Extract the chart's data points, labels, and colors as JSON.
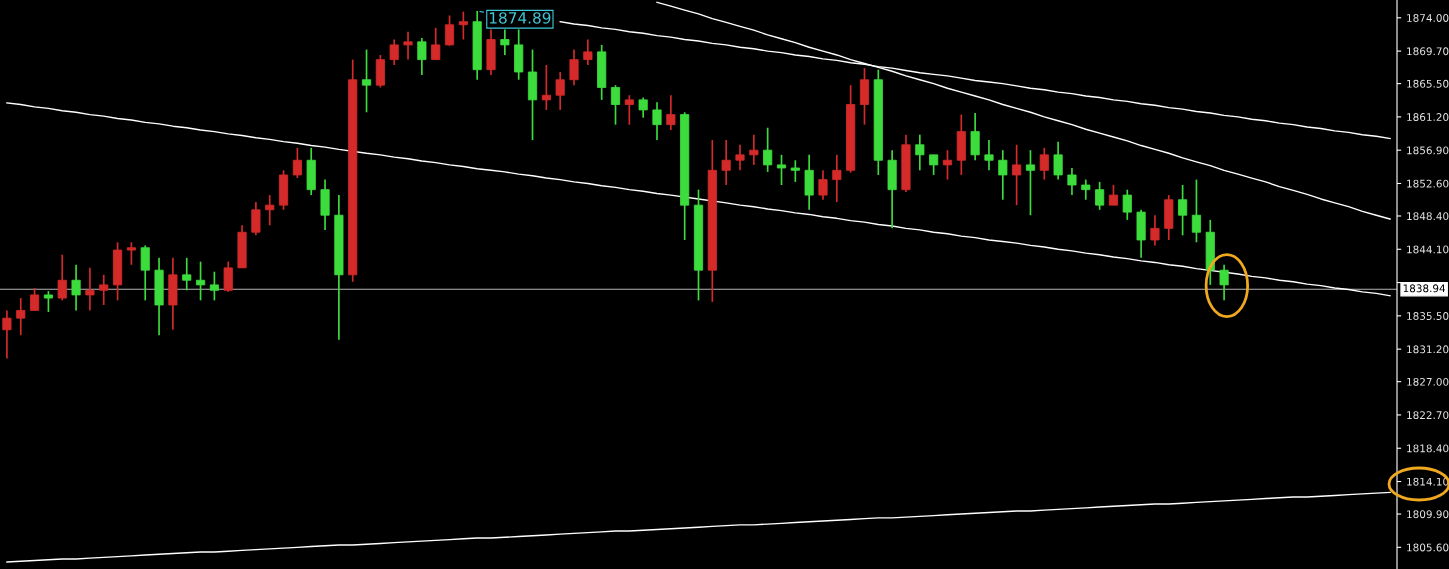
{
  "chart_data": {
    "type": "candlestick",
    "categories": [
      null,
      null,
      null,
      null,
      null,
      null,
      null,
      null,
      null,
      null,
      null,
      null,
      null,
      null,
      null,
      null,
      null,
      null,
      null,
      null,
      null,
      null,
      null,
      null,
      null,
      null,
      null,
      null,
      null,
      null,
      null,
      null,
      null,
      null,
      null,
      null,
      null,
      null,
      null,
      null,
      null,
      null,
      null,
      null,
      null,
      null,
      null,
      null,
      null,
      null,
      null,
      null,
      null,
      null,
      null,
      null,
      null,
      null,
      null,
      null,
      null,
      null,
      null,
      null,
      null,
      null,
      null,
      null,
      null,
      null,
      null,
      null,
      null,
      null,
      null,
      null,
      null,
      null,
      null,
      null,
      null,
      null,
      null,
      null,
      null,
      null,
      null,
      null,
      null,
      null,
      null,
      null,
      null,
      null,
      null,
      null,
      null,
      null,
      null,
      null,
      null
    ],
    "ohlc": [
      [
        1833.7,
        1836.2,
        1830.0,
        1835.2
      ],
      [
        1835.2,
        1837.8,
        1833.0,
        1836.2
      ],
      [
        1836.2,
        1839.1,
        1836.2,
        1838.2
      ],
      [
        1838.2,
        1838.7,
        1836.0,
        1837.8
      ],
      [
        1837.8,
        1843.4,
        1837.5,
        1840.1
      ],
      [
        1840.1,
        1842.1,
        1836.2,
        1838.2
      ],
      [
        1838.2,
        1841.7,
        1836.2,
        1838.8
      ],
      [
        1838.8,
        1840.8,
        1836.9,
        1839.5
      ],
      [
        1839.5,
        1845.0,
        1837.5,
        1844.0
      ],
      [
        1844.0,
        1845.0,
        1842.1,
        1844.3
      ],
      [
        1844.3,
        1844.6,
        1837.5,
        1841.4
      ],
      [
        1841.4,
        1843.0,
        1833.0,
        1836.9
      ],
      [
        1836.9,
        1843.0,
        1833.7,
        1840.8
      ],
      [
        1840.8,
        1843.0,
        1838.8,
        1840.1
      ],
      [
        1840.1,
        1842.5,
        1837.5,
        1839.5
      ],
      [
        1839.5,
        1841.2,
        1837.5,
        1838.8
      ],
      [
        1838.8,
        1842.5,
        1838.6,
        1841.7
      ],
      [
        1841.7,
        1847.2,
        1841.7,
        1846.3
      ],
      [
        1846.3,
        1850.2,
        1845.9,
        1849.2
      ],
      [
        1849.2,
        1851.1,
        1847.2,
        1849.8
      ],
      [
        1849.8,
        1854.3,
        1849.2,
        1853.7
      ],
      [
        1853.7,
        1857.2,
        1853.3,
        1855.6
      ],
      [
        1855.6,
        1857.2,
        1851.1,
        1851.8
      ],
      [
        1851.8,
        1853.1,
        1846.6,
        1848.5
      ],
      [
        1848.5,
        1851.1,
        1832.4,
        1840.8
      ],
      [
        1840.8,
        1868.6,
        1839.9,
        1866.0
      ],
      [
        1866.0,
        1869.9,
        1861.8,
        1865.3
      ],
      [
        1865.3,
        1869.2,
        1865.0,
        1868.6
      ],
      [
        1868.6,
        1871.2,
        1867.9,
        1870.5
      ],
      [
        1870.5,
        1872.2,
        1868.6,
        1870.9
      ],
      [
        1870.9,
        1871.4,
        1866.6,
        1868.6
      ],
      [
        1868.6,
        1872.7,
        1868.6,
        1870.5
      ],
      [
        1870.5,
        1874.3,
        1870.4,
        1873.1
      ],
      [
        1873.1,
        1874.8,
        1871.2,
        1873.5
      ],
      [
        1873.5,
        1874.89,
        1866.0,
        1867.3
      ],
      [
        1867.3,
        1872.5,
        1866.6,
        1871.2
      ],
      [
        1871.2,
        1872.5,
        1869.2,
        1870.5
      ],
      [
        1870.5,
        1872.5,
        1866.0,
        1867.0
      ],
      [
        1867.0,
        1869.9,
        1858.2,
        1863.4
      ],
      [
        1863.4,
        1867.9,
        1862.1,
        1864.0
      ],
      [
        1864.0,
        1867.0,
        1862.1,
        1866.0
      ],
      [
        1866.0,
        1869.9,
        1865.3,
        1868.6
      ],
      [
        1868.6,
        1871.2,
        1867.9,
        1869.6
      ],
      [
        1869.6,
        1870.5,
        1863.4,
        1865.0
      ],
      [
        1865.0,
        1865.3,
        1860.2,
        1862.8
      ],
      [
        1862.8,
        1864.0,
        1860.2,
        1863.4
      ],
      [
        1863.4,
        1863.7,
        1861.1,
        1862.1
      ],
      [
        1862.1,
        1863.1,
        1858.2,
        1860.2
      ],
      [
        1860.2,
        1864.0,
        1859.5,
        1861.5
      ],
      [
        1861.5,
        1861.8,
        1845.3,
        1849.8
      ],
      [
        1849.8,
        1851.8,
        1837.5,
        1841.4
      ],
      [
        1841.4,
        1858.2,
        1837.3,
        1854.3
      ],
      [
        1854.3,
        1858.2,
        1852.4,
        1855.6
      ],
      [
        1855.6,
        1857.6,
        1854.3,
        1856.3
      ],
      [
        1856.3,
        1858.9,
        1855.0,
        1856.9
      ],
      [
        1856.9,
        1859.8,
        1854.1,
        1855.0
      ],
      [
        1855.0,
        1856.3,
        1852.4,
        1854.6
      ],
      [
        1854.6,
        1855.6,
        1852.8,
        1854.3
      ],
      [
        1854.3,
        1856.3,
        1849.2,
        1851.1
      ],
      [
        1851.1,
        1854.3,
        1850.5,
        1853.1
      ],
      [
        1853.1,
        1856.3,
        1850.2,
        1854.3
      ],
      [
        1854.3,
        1865.3,
        1854.0,
        1862.8
      ],
      [
        1862.8,
        1867.5,
        1860.2,
        1866.0
      ],
      [
        1866.0,
        1867.3,
        1853.7,
        1855.6
      ],
      [
        1855.6,
        1856.9,
        1846.8,
        1851.8
      ],
      [
        1851.8,
        1858.9,
        1851.5,
        1857.6
      ],
      [
        1857.6,
        1858.9,
        1854.3,
        1856.3
      ],
      [
        1856.3,
        1856.3,
        1853.7,
        1855.0
      ],
      [
        1855.0,
        1856.9,
        1853.1,
        1855.6
      ],
      [
        1855.6,
        1861.5,
        1853.7,
        1859.3
      ],
      [
        1859.3,
        1861.7,
        1855.6,
        1856.3
      ],
      [
        1856.3,
        1858.2,
        1854.3,
        1855.6
      ],
      [
        1855.6,
        1856.9,
        1850.5,
        1853.7
      ],
      [
        1853.7,
        1857.6,
        1849.8,
        1855.0
      ],
      [
        1855.0,
        1856.9,
        1848.5,
        1854.3
      ],
      [
        1854.3,
        1857.2,
        1853.1,
        1856.3
      ],
      [
        1856.3,
        1858.0,
        1853.1,
        1853.7
      ],
      [
        1853.7,
        1854.6,
        1851.1,
        1852.4
      ],
      [
        1852.4,
        1853.1,
        1850.5,
        1851.8
      ],
      [
        1851.8,
        1852.8,
        1849.2,
        1849.8
      ],
      [
        1849.8,
        1852.4,
        1849.8,
        1851.1
      ],
      [
        1851.1,
        1851.8,
        1847.9,
        1848.9
      ],
      [
        1848.9,
        1849.2,
        1843.0,
        1845.3
      ],
      [
        1845.3,
        1848.5,
        1844.6,
        1846.8
      ],
      [
        1846.8,
        1851.1,
        1845.3,
        1850.5
      ],
      [
        1850.5,
        1852.4,
        1845.9,
        1848.5
      ],
      [
        1848.5,
        1853.1,
        1845.0,
        1846.3
      ],
      [
        1846.3,
        1847.9,
        1839.5,
        1841.4
      ],
      [
        1841.4,
        1842.1,
        1837.5,
        1839.5
      ],
      null,
      null,
      null,
      null,
      null,
      null,
      null,
      null,
      null,
      null,
      null,
      null
    ],
    "colors": [
      "#d42a2a",
      "#d42a2a",
      "#d42a2a",
      "#3ddc3d",
      "#d42a2a",
      "#3ddc3d",
      "#d42a2a",
      "#d42a2a",
      "#d42a2a",
      "#d42a2a",
      "#3ddc3d",
      "#3ddc3d",
      "#d42a2a",
      "#3ddc3d",
      "#3ddc3d",
      "#3ddc3d",
      "#d42a2a",
      "#d42a2a",
      "#d42a2a",
      "#d42a2a",
      "#d42a2a",
      "#d42a2a",
      "#3ddc3d",
      "#3ddc3d",
      "#3ddc3d",
      "#d42a2a",
      "#3ddc3d",
      "#d42a2a",
      "#d42a2a",
      "#d42a2a",
      "#3ddc3d",
      "#d42a2a",
      "#d42a2a",
      "#d42a2a",
      "#3ddc3d",
      "#d42a2a",
      "#3ddc3d",
      "#3ddc3d",
      "#3ddc3d",
      "#d42a2a",
      "#d42a2a",
      "#d42a2a",
      "#d42a2a",
      "#3ddc3d",
      "#3ddc3d",
      "#d42a2a",
      "#3ddc3d",
      "#3ddc3d",
      "#d42a2a",
      "#3ddc3d",
      "#3ddc3d",
      "#d42a2a",
      "#d42a2a",
      "#d42a2a",
      "#d42a2a",
      "#3ddc3d",
      "#3ddc3d",
      "#3ddc3d",
      "#3ddc3d",
      "#d42a2a",
      "#d42a2a",
      "#d42a2a",
      "#d42a2a",
      "#3ddc3d",
      "#3ddc3d",
      "#d42a2a",
      "#3ddc3d",
      "#3ddc3d",
      "#d42a2a",
      "#d42a2a",
      "#3ddc3d",
      "#3ddc3d",
      "#3ddc3d",
      "#d42a2a",
      "#3ddc3d",
      "#d42a2a",
      "#3ddc3d",
      "#3ddc3d",
      "#3ddc3d",
      "#3ddc3d",
      "#d42a2a",
      "#3ddc3d",
      "#3ddc3d",
      "#d42a2a",
      "#d42a2a",
      "#3ddc3d",
      "#3ddc3d",
      "#3ddc3d",
      "#3ddc3d",
      null,
      null,
      null,
      null,
      null,
      null,
      null,
      null,
      null,
      null,
      null,
      null
    ],
    "series": [
      {
        "type": "line",
        "color": "#ffffff",
        "values": [
          null,
          null,
          null,
          null,
          null,
          null,
          null,
          null,
          null,
          null,
          null,
          null,
          null,
          null,
          null,
          null,
          null,
          null,
          null,
          null,
          null,
          null,
          null,
          null,
          null,
          null,
          null,
          null,
          null,
          null,
          null,
          null,
          null,
          null,
          null,
          null,
          null,
          null,
          null,
          null,
          1873.5,
          1873.2,
          1873.0,
          1872.7,
          1872.5,
          1872.2,
          1872.0,
          1871.7,
          1871.5,
          1871.2,
          1871.0,
          1870.7,
          1870.5,
          1870.2,
          1870.0,
          1869.7,
          1869.5,
          1869.2,
          1869.0,
          1868.7,
          1868.5,
          1868.2,
          1868.0,
          1867.7,
          1867.5,
          1867.2,
          1866.9,
          1866.7,
          1866.5,
          1866.2,
          1865.9,
          1865.7,
          1865.5,
          1865.2,
          1864.9,
          1864.7,
          1864.4,
          1864.2,
          1863.9,
          1863.7,
          1863.4,
          1863.2,
          1862.9,
          1862.7,
          1862.4,
          1862.2,
          1861.9,
          1861.7,
          1861.4,
          1861.2,
          1860.9,
          1860.7,
          1860.4,
          1860.2,
          1859.9,
          1859.7,
          1859.4,
          1859.2,
          1858.9,
          1858.7,
          1858.4
        ]
      },
      {
        "type": "line",
        "color": "#ffffff",
        "values": [
          null,
          null,
          null,
          null,
          null,
          null,
          null,
          null,
          null,
          null,
          null,
          null,
          null,
          null,
          null,
          null,
          null,
          null,
          null,
          null,
          null,
          null,
          null,
          null,
          null,
          null,
          null,
          null,
          null,
          null,
          null,
          null,
          null,
          null,
          null,
          null,
          null,
          null,
          null,
          null,
          null,
          null,
          null,
          null,
          null,
          null,
          null,
          1876.0,
          1875.5,
          1875.0,
          1874.5,
          1873.9,
          1873.4,
          1872.9,
          1872.4,
          1871.8,
          1871.3,
          1870.8,
          1870.2,
          1869.7,
          1869.2,
          1868.6,
          1868.1,
          1867.6,
          1867.1,
          1866.5,
          1866.0,
          1865.5,
          1864.9,
          1864.4,
          1863.9,
          1863.4,
          1862.8,
          1862.3,
          1861.8,
          1861.2,
          1860.7,
          1860.2,
          1859.6,
          1859.1,
          1858.6,
          1858.1,
          1857.5,
          1857.0,
          1856.5,
          1855.9,
          1855.4,
          1854.9,
          1854.3,
          1853.8,
          1853.3,
          1852.8,
          1852.2,
          1851.7,
          1851.2,
          1850.6,
          1850.1,
          1849.6,
          1849.0,
          1848.5,
          1848.0
        ]
      },
      {
        "type": "line",
        "color": "#ffffff",
        "values": [
          1863.0,
          1862.8,
          1862.5,
          1862.3,
          1862.0,
          1861.8,
          1861.5,
          1861.3,
          1861.0,
          1860.8,
          1860.5,
          1860.3,
          1860.0,
          1859.8,
          1859.5,
          1859.3,
          1859.0,
          1858.8,
          1858.5,
          1858.3,
          1858.0,
          1857.8,
          1857.5,
          1857.3,
          1857.0,
          null,
          1856.5,
          1856.3,
          1856.0,
          1855.8,
          1855.5,
          1855.3,
          1855.0,
          1854.8,
          1854.5,
          1854.3,
          1854.1,
          1853.8,
          1853.6,
          1853.3,
          1853.1,
          1852.8,
          1852.6,
          1852.3,
          1852.1,
          1851.8,
          1851.6,
          1851.3,
          1851.1,
          null,
          1850.6,
          null,
          1850.1,
          1849.8,
          1849.6,
          1849.3,
          1849.1,
          1848.8,
          1848.6,
          1848.3,
          1848.1,
          1847.8,
          1847.6,
          1847.3,
          1847.1,
          1846.8,
          1846.6,
          1846.3,
          1846.1,
          1845.8,
          1845.6,
          1845.3,
          1845.1,
          1844.9,
          1844.6,
          1844.4,
          1844.1,
          1843.9,
          1843.6,
          1843.4,
          1843.1,
          1842.9,
          1842.6,
          1842.4,
          1842.1,
          1841.9,
          1841.6,
          null,
          null,
          1840.9,
          1840.6,
          1840.4,
          1840.1,
          1839.9,
          1839.6,
          1839.4,
          1839.1,
          1838.9,
          1838.6,
          1838.4,
          1838.1
        ]
      },
      {
        "type": "line",
        "color": "#ffffff",
        "values": [
          1803.7,
          1803.8,
          1803.9,
          1804.0,
          1804.1,
          1804.1,
          1804.2,
          1804.3,
          1804.4,
          1804.5,
          1804.6,
          1804.7,
          1804.8,
          1804.9,
          1805.0,
          1805.0,
          1805.1,
          1805.2,
          1805.3,
          1805.4,
          1805.5,
          1805.6,
          1805.7,
          1805.8,
          1805.9,
          1805.9,
          1806.0,
          1806.1,
          1806.2,
          1806.3,
          1806.4,
          1806.5,
          1806.6,
          1806.7,
          1806.8,
          1806.8,
          1806.9,
          1807.0,
          1807.1,
          1807.2,
          1807.3,
          1807.4,
          1807.5,
          1807.6,
          1807.7,
          1807.7,
          1807.8,
          1807.9,
          1808.0,
          1808.1,
          1808.2,
          1808.3,
          1808.4,
          1808.5,
          1808.5,
          1808.6,
          1808.7,
          1808.8,
          1808.9,
          1809.0,
          1809.1,
          1809.2,
          1809.3,
          1809.4,
          1809.4,
          1809.5,
          1809.6,
          1809.7,
          1809.8,
          1809.9,
          1810.0,
          1810.1,
          1810.2,
          1810.3,
          1810.3,
          1810.4,
          1810.5,
          1810.6,
          1810.7,
          1810.8,
          1810.9,
          1811.0,
          1811.1,
          1811.2,
          1811.2,
          1811.3,
          1811.4,
          1811.5,
          1811.6,
          1811.7,
          1811.8,
          1811.9,
          1812.0,
          1812.1,
          1812.1,
          1812.2,
          1812.3,
          1812.4,
          1812.5,
          1812.6,
          1812.7
        ]
      }
    ],
    "ylim": [
      1802.8,
      1876.3
    ],
    "yticks": [
      {
        "value": 1874.0,
        "label": "1874.00"
      },
      {
        "value": 1869.7,
        "label": "1869.70"
      },
      {
        "value": 1865.5,
        "label": "1865.50"
      },
      {
        "value": 1861.2,
        "label": "1861.20"
      },
      {
        "value": 1856.9,
        "label": "1856.90"
      },
      {
        "value": 1852.6,
        "label": "1852.60"
      },
      {
        "value": 1848.4,
        "label": "1848.40"
      },
      {
        "value": 1844.1,
        "label": "1844.10"
      },
      {
        "value": 1839.8,
        "label": null
      },
      {
        "value": 1835.5,
        "label": "1835.50"
      },
      {
        "value": 1831.2,
        "label": "1831.20"
      },
      {
        "value": 1827.0,
        "label": "1827.00"
      },
      {
        "value": 1822.7,
        "label": "1822.70"
      },
      {
        "value": 1818.4,
        "label": "1818.40"
      },
      {
        "value": 1814.1,
        "label": "1814.10"
      },
      {
        "value": 1809.9,
        "label": "1809.90"
      },
      {
        "value": 1805.6,
        "label": "1805.60"
      }
    ],
    "tick_labels": "y",
    "ref_lines": [
      {
        "axis": "y",
        "value": 1838.94,
        "label": "1838.94",
        "color": "#b4b4b4"
      }
    ],
    "annotations": [
      "1874.89"
    ]
  }
}
